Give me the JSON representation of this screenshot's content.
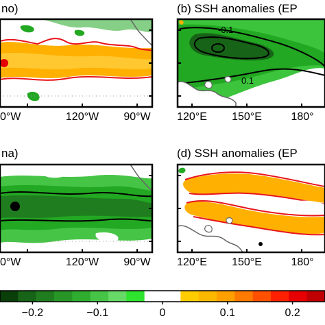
{
  "chart_data": [
    {
      "type": "heatmap",
      "title": "no)",
      "x_ticks": [
        "0°W",
        "120°W",
        "90°W"
      ],
      "colors": {
        "positive": "#ffb000",
        "contour_positive": "#e8141e",
        "negative": "#22a822",
        "contour_negative": "#000000"
      }
    },
    {
      "type": "heatmap",
      "title": "(b) SSH anomalies (EP",
      "contour_labels": [
        "-0.1",
        "0.1"
      ],
      "x_ticks": [
        "120°E",
        "150°E",
        "180°"
      ]
    },
    {
      "type": "heatmap",
      "title": "na)",
      "x_ticks": [
        "0°W",
        "120°W",
        "90°W"
      ]
    },
    {
      "type": "heatmap",
      "title": "(d) SSH anomalies (EP",
      "x_ticks": [
        "120°E",
        "150°E",
        "180°"
      ]
    }
  ],
  "colorbar": {
    "min": -0.25,
    "max": 0.25,
    "colors": [
      "#0a3f0a",
      "#176317",
      "#1f7d1f",
      "#279627",
      "#2fad2f",
      "#46c446",
      "#66d966",
      "#2ee42e",
      "#ffffff",
      "#ffffff",
      "#ffcc00",
      "#ffb800",
      "#ffa000",
      "#ff7a00",
      "#ff5000",
      "#ff2000",
      "#e60000",
      "#c00000"
    ],
    "tick_labels": [
      "−0.2",
      "−0.1",
      "0",
      "0.1",
      "0.2"
    ],
    "tick_values": [
      -0.2,
      -0.1,
      0,
      0.1,
      0.2
    ]
  }
}
